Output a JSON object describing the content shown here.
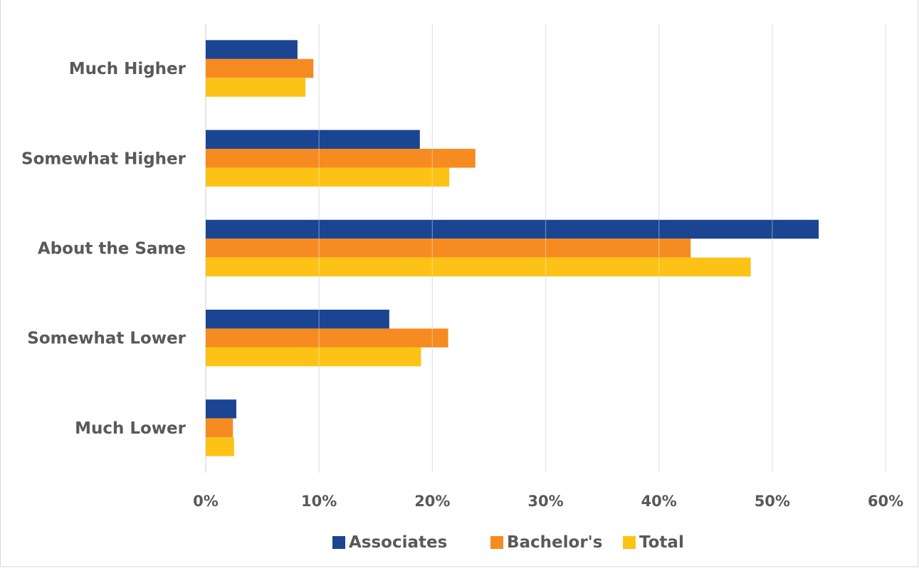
{
  "chart_data": {
    "type": "bar",
    "orientation": "horizontal",
    "categories": [
      "Much Higher",
      "Somewhat Higher",
      "About the Same",
      "Somewhat Lower",
      "Much Lower"
    ],
    "series": [
      {
        "name": "Associates",
        "color": "#1b4592",
        "values": [
          8.1,
          18.9,
          54.1,
          16.2,
          2.7
        ]
      },
      {
        "name": "Bachelor's",
        "color": "#f68b21",
        "values": [
          9.5,
          23.8,
          42.8,
          21.4,
          2.4
        ]
      },
      {
        "name": "Total",
        "color": "#fcc216",
        "values": [
          8.8,
          21.5,
          48.1,
          19.0,
          2.5
        ]
      }
    ],
    "xlim": [
      0,
      60
    ],
    "xticks": [
      0,
      10,
      20,
      30,
      40,
      50,
      60
    ],
    "xtick_labels": [
      "0%",
      "10%",
      "20%",
      "30%",
      "40%",
      "50%",
      "60%"
    ],
    "grid": true,
    "legend_position": "bottom",
    "title": "",
    "xlabel": "",
    "ylabel": ""
  }
}
